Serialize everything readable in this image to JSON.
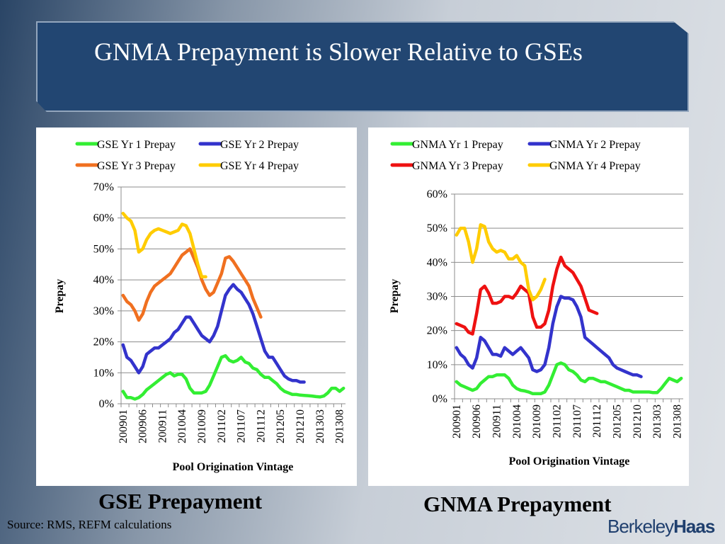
{
  "slide": {
    "title": "GNMA Prepayment is Slower Relative to GSEs",
    "source": "Source: RMS, REFM calculations",
    "logo": {
      "part1": "Berkeley",
      "part2": "Haas"
    }
  },
  "chart_data": [
    {
      "id": "gse",
      "type": "line",
      "caption": "GSE Prepayment",
      "title": "",
      "xlabel": "Pool Origination Vintage",
      "ylabel": "Prepay",
      "ylim": [
        0,
        70
      ],
      "yticks": [
        0,
        10,
        20,
        30,
        40,
        50,
        60,
        70
      ],
      "ytick_labels": [
        "0%",
        "10%",
        "20%",
        "30%",
        "40%",
        "50%",
        "60%",
        "70%"
      ],
      "x_count": 57,
      "xtick_labels": [
        "200901",
        "200906",
        "200911",
        "201004",
        "201009",
        "201102",
        "201107",
        "201112",
        "201205",
        "201210",
        "201303",
        "201308"
      ],
      "xtick_every": 5,
      "grid": true,
      "legend": "top",
      "series": [
        {
          "name": "GSE Yr 1 Prepay",
          "color": "#33ee33",
          "values": [
            4,
            2,
            2,
            1.5,
            2,
            3,
            4.5,
            5.5,
            6.5,
            7.5,
            8.5,
            9.5,
            10,
            9,
            9.5,
            9.5,
            8,
            5,
            3.5,
            3.5,
            3.5,
            4,
            6,
            9,
            12,
            15,
            15.5,
            14,
            13.5,
            14,
            15,
            13.5,
            13,
            11.5,
            11,
            9.5,
            8.5,
            8.5,
            7.5,
            6.5,
            5,
            4,
            3.5,
            3,
            3,
            2.8,
            2.7,
            2.6,
            2.5,
            2.3,
            2.2,
            2.5,
            3.5,
            5,
            5,
            4,
            5
          ]
        },
        {
          "name": "GSE Yr 2 Prepay",
          "color": "#3333cc",
          "values": [
            19,
            15,
            14,
            12,
            10,
            12,
            16,
            17,
            18,
            18,
            19,
            20,
            21,
            23,
            24,
            26,
            28,
            28,
            26,
            24,
            22,
            21,
            20,
            22,
            25,
            30,
            35,
            37,
            38.5,
            37,
            36,
            34,
            32,
            29,
            25,
            21,
            17,
            15,
            15,
            13,
            11,
            9,
            8,
            7.5,
            7.5,
            7,
            7
          ]
        },
        {
          "name": "GSE Yr 3 Prepay",
          "color": "#f07020",
          "values": [
            35,
            33,
            32,
            30,
            27,
            29,
            33,
            36,
            38,
            39,
            40,
            41,
            42,
            44,
            46,
            48,
            49,
            50,
            47,
            44,
            40,
            37,
            35,
            36,
            39,
            42,
            47,
            47.5,
            46,
            44,
            42,
            40,
            38,
            34,
            31,
            28
          ]
        },
        {
          "name": "GSE Yr 4 Prepay",
          "color": "#ffcc00",
          "values": [
            61.5,
            60,
            59,
            56,
            49,
            50,
            53,
            55,
            56,
            56.5,
            56,
            55.5,
            55,
            55.5,
            56,
            58,
            57.5,
            55,
            50,
            45,
            41,
            41
          ]
        }
      ]
    },
    {
      "id": "gnma",
      "type": "line",
      "caption": "GNMA Prepayment",
      "title": "",
      "xlabel": "Pool Origination Vintage",
      "ylabel": "Prepay",
      "ylim": [
        0,
        60
      ],
      "yticks": [
        0,
        10,
        20,
        30,
        40,
        50,
        60
      ],
      "ytick_labels": [
        "0%",
        "10%",
        "20%",
        "30%",
        "40%",
        "50%",
        "60%"
      ],
      "x_count": 57,
      "xtick_labels": [
        "200901",
        "200906",
        "200911",
        "201004",
        "201009",
        "201102",
        "201107",
        "201112",
        "201205",
        "201210",
        "201303",
        "201308"
      ],
      "xtick_every": 5,
      "grid": true,
      "legend": "top",
      "series": [
        {
          "name": "GNMA Yr 1 Prepay",
          "color": "#33ee33",
          "values": [
            5,
            4,
            3.5,
            3,
            2.5,
            3,
            4.5,
            5.5,
            6.5,
            6.5,
            7,
            7,
            7,
            6,
            4,
            3,
            2.5,
            2.3,
            2,
            1.5,
            1.5,
            1.5,
            2,
            4,
            7,
            10,
            10.5,
            10,
            8.5,
            8,
            7,
            5.5,
            5,
            6,
            6,
            5.5,
            5,
            5,
            4.5,
            4,
            3.5,
            3,
            2.5,
            2.5,
            2,
            2,
            2,
            2,
            2,
            1.8,
            1.8,
            3,
            4.5,
            6,
            5.5,
            5,
            6
          ]
        },
        {
          "name": "GNMA Yr 2 Prepay",
          "color": "#3333cc",
          "values": [
            15,
            13,
            12,
            10,
            9,
            12,
            18,
            17,
            15,
            13,
            13,
            12.5,
            15,
            14,
            13,
            14,
            15,
            13.5,
            12,
            8.5,
            8,
            8.5,
            10,
            15,
            22,
            27,
            30,
            29.5,
            29.5,
            29,
            27,
            24,
            18,
            17,
            16,
            15,
            14,
            13,
            12,
            10,
            9,
            8.5,
            8,
            7.5,
            7,
            7,
            6.5
          ]
        },
        {
          "name": "GNMA Yr 3 Prepay",
          "color": "#ee1111",
          "values": [
            22,
            21.5,
            21,
            19.5,
            19,
            25,
            32,
            33,
            31,
            28,
            28,
            28.5,
            30,
            30,
            29.5,
            31,
            33,
            32,
            31,
            24,
            21,
            21,
            22,
            26,
            33,
            38,
            41.5,
            39,
            38,
            37,
            35,
            33,
            29.5,
            26,
            25.5,
            25
          ]
        },
        {
          "name": "GNMA Yr 4 Prepay",
          "color": "#ffcc00",
          "values": [
            48,
            50,
            50,
            46,
            40,
            44,
            51,
            50.5,
            46,
            44,
            43,
            43.5,
            43,
            41,
            41,
            42,
            40,
            39,
            32,
            29,
            30,
            32,
            35
          ]
        }
      ]
    }
  ]
}
